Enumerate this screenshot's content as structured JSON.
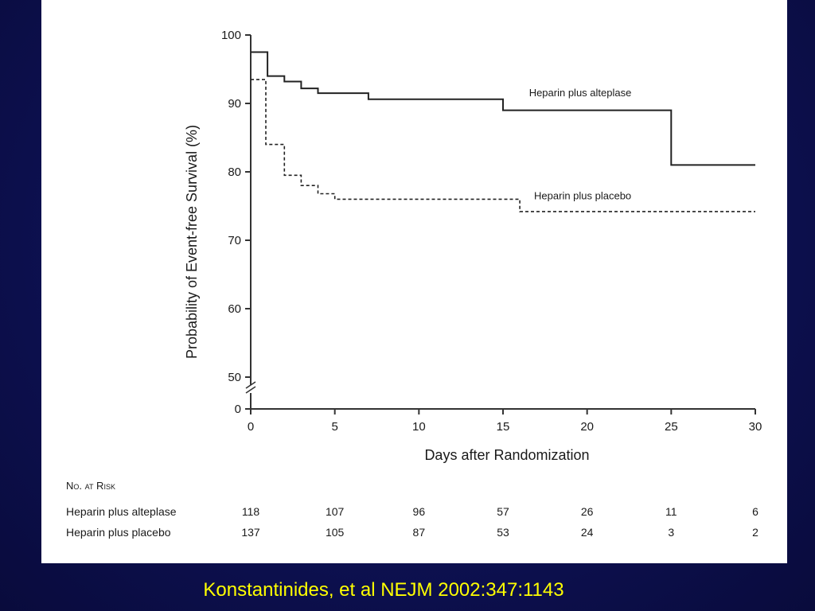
{
  "caption": "Konstantinides, et al NEJM 2002:347:1143",
  "chart_data": {
    "type": "line",
    "subtype": "kaplan-meier step",
    "xlabel": "Days after Randomization",
    "ylabel": "Probability of Event-free Survival (%)",
    "xlim": [
      0,
      30
    ],
    "ylim": [
      50,
      100
    ],
    "y_axis_break": true,
    "x_ticks": [
      0,
      5,
      10,
      15,
      20,
      25,
      30
    ],
    "y_ticks": [
      0,
      50,
      60,
      70,
      80,
      90,
      100
    ],
    "series": [
      {
        "name": "Heparin plus alteplase",
        "style": "solid",
        "points": [
          [
            0,
            97.5
          ],
          [
            1,
            97.5
          ],
          [
            1,
            94
          ],
          [
            2,
            94
          ],
          [
            2,
            93.2
          ],
          [
            3,
            93.2
          ],
          [
            3,
            92.2
          ],
          [
            4,
            92.2
          ],
          [
            4,
            91.5
          ],
          [
            7,
            91.5
          ],
          [
            7,
            90.6
          ],
          [
            15,
            90.6
          ],
          [
            15,
            89
          ],
          [
            25,
            89
          ],
          [
            25,
            81
          ],
          [
            30,
            81
          ]
        ]
      },
      {
        "name": "Heparin plus placebo",
        "style": "dashed",
        "points": [
          [
            0,
            93.5
          ],
          [
            0.9,
            93.5
          ],
          [
            0.9,
            84
          ],
          [
            2,
            84
          ],
          [
            2,
            79.5
          ],
          [
            3,
            79.5
          ],
          [
            3,
            78
          ],
          [
            4,
            78
          ],
          [
            4,
            76.8
          ],
          [
            5,
            76.8
          ],
          [
            5,
            76
          ],
          [
            16,
            76
          ],
          [
            16,
            74.2
          ],
          [
            30,
            74.2
          ]
        ]
      }
    ],
    "series_label_positions": [
      "above-right",
      "above-right"
    ]
  },
  "risk_table": {
    "title": "No. at Risk",
    "rows": [
      {
        "label": "Heparin plus alteplase",
        "values": [
          "118",
          "107",
          "96",
          "57",
          "26",
          "11",
          "6"
        ]
      },
      {
        "label": "Heparin plus placebo",
        "values": [
          "137",
          "105",
          "87",
          "53",
          "24",
          "3",
          "2"
        ]
      }
    ]
  }
}
